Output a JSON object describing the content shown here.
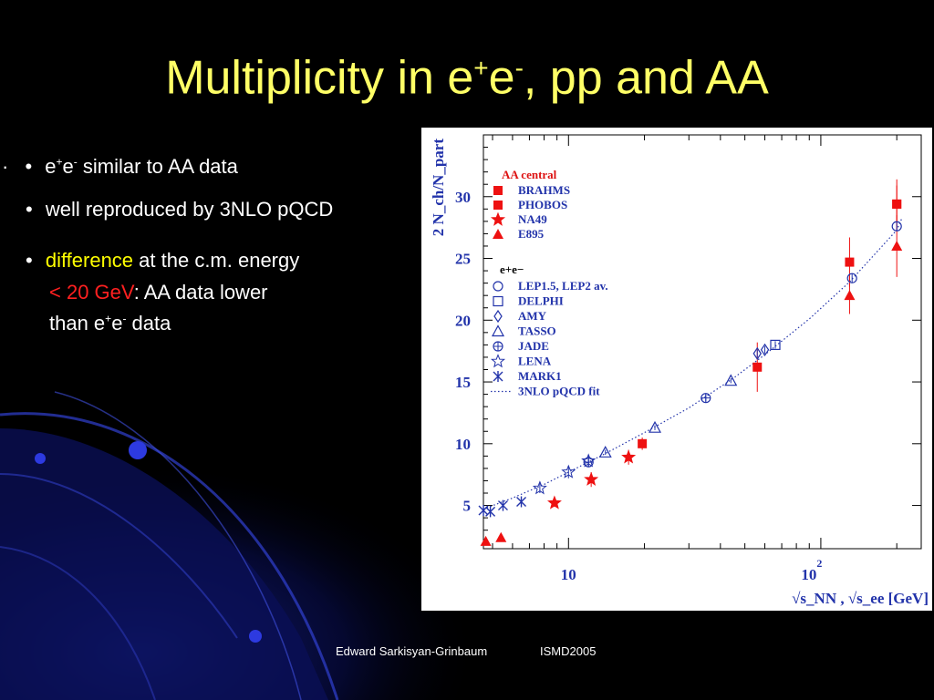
{
  "slide": {
    "title_base": "Multiplicity in e",
    "title_sup1": "+",
    "title_mid": "e",
    "title_sup2": "-",
    "title_end": ", pp and AA"
  },
  "bullets": [
    {
      "marker": "•",
      "prefix_marker": "·",
      "a": "e",
      "a_sup": "+",
      "b": "e",
      "b_sup": "-",
      "text": " similar to AA data"
    },
    {
      "marker": "•",
      "text": "well reproduced by 3NLO pQCD"
    },
    {
      "marker": "•",
      "highlight": "difference",
      "text": " at the c.m. energy",
      "line2_highlight": "< 20 GeV",
      "line2_text": ": AA data lower",
      "line3_a": "than e",
      "line3_a_sup": "+",
      "line3_b": "e",
      "line3_b_sup": "-",
      "line3_text": " data"
    }
  ],
  "footer": {
    "author": "Edward Sarkisyan-Grinbaum",
    "event": "ISMD2005"
  },
  "colors": {
    "title": "#ffff66",
    "highlight_yellow": "#ffff00",
    "highlight_red": "#ff2020",
    "aa_marker": "#ee1111",
    "ee_marker": "#2233aa",
    "background": "#000000"
  },
  "chart_data": {
    "type": "scatter",
    "xscale": "log",
    "xlim": [
      4.6,
      250
    ],
    "ylim": [
      1.5,
      35
    ],
    "yticks": [
      5,
      10,
      15,
      20,
      25,
      30
    ],
    "xtick_labels": [
      "10",
      "10^2"
    ],
    "ylabel": "2 N_ch/N_part",
    "xlabel": "√s_NN , √s_ee   [GeV]",
    "legend_location": "top-left",
    "legend_header_aa": "AA central",
    "legend_header_ee": "e+e−",
    "series": [
      {
        "name": "BRAHMS",
        "group": "AA",
        "marker": "square",
        "color": "#ee1111",
        "x": [
          200
        ],
        "y": [
          29.4
        ],
        "err": [
          2.0
        ]
      },
      {
        "name": "PHOBOS",
        "group": "AA",
        "marker": "square",
        "color": "#ee1111",
        "x": [
          19.6,
          56,
          130,
          200
        ],
        "y": [
          10.0,
          16.2,
          24.7,
          29.4
        ],
        "err": [
          0.5,
          2.0,
          2.0,
          1.5
        ]
      },
      {
        "name": "NA49",
        "group": "AA",
        "marker": "star",
        "color": "#ee1111",
        "x": [
          8.8,
          12.3,
          17.3
        ],
        "y": [
          5.2,
          7.1,
          8.9
        ],
        "err": [
          0.3,
          0.6,
          0.6
        ]
      },
      {
        "name": "E895",
        "group": "AA",
        "marker": "triangle",
        "color": "#ee1111",
        "x": [
          4.7,
          5.4,
          130,
          200
        ],
        "y": [
          2.1,
          2.4,
          22.0,
          26.0
        ],
        "err": [
          0.15,
          0.15,
          1.5,
          2.5
        ]
      },
      {
        "name": "LEP1.5, LEP2 av.",
        "group": "ee",
        "marker": "circle",
        "color": "#2233aa",
        "x": [
          133,
          200
        ],
        "y": [
          23.4,
          27.6
        ],
        "err": [
          0.4,
          0.4
        ]
      },
      {
        "name": "DELPHI",
        "group": "ee",
        "marker": "open-square",
        "color": "#2233aa",
        "x": [
          66
        ],
        "y": [
          18.0
        ],
        "err": [
          0.3
        ]
      },
      {
        "name": "AMY",
        "group": "ee",
        "marker": "diamond",
        "color": "#2233aa",
        "x": [
          56,
          60
        ],
        "y": [
          17.3,
          17.6
        ],
        "err": [
          0.3,
          0.3
        ]
      },
      {
        "name": "TASSO",
        "group": "ee",
        "marker": "open-triangle",
        "color": "#2233aa",
        "x": [
          14,
          22,
          44
        ],
        "y": [
          9.3,
          11.3,
          15.1
        ],
        "err": [
          0.2,
          0.2,
          0.2
        ]
      },
      {
        "name": "JADE",
        "group": "ee",
        "marker": "circle-plus",
        "color": "#2233aa",
        "x": [
          12,
          35
        ],
        "y": [
          8.5,
          13.7
        ],
        "err": [
          0.4,
          0.3
        ]
      },
      {
        "name": "LENA",
        "group": "ee",
        "marker": "open-star",
        "color": "#2233aa",
        "x": [
          7.7,
          10,
          12
        ],
        "y": [
          6.4,
          7.7,
          8.6
        ],
        "err": [
          0.4,
          0.5,
          0.4
        ]
      },
      {
        "name": "MARK1",
        "group": "ee",
        "marker": "asterisk",
        "color": "#2233aa",
        "x": [
          4.6,
          4.9,
          5.5,
          6.5
        ],
        "y": [
          4.6,
          4.5,
          5.0,
          5.3
        ],
        "err": [
          0,
          0,
          0,
          0
        ]
      }
    ],
    "fit": {
      "name": "3NLO pQCD fit",
      "style": "dotted",
      "color": "#2233aa",
      "x": [
        4.6,
        6,
        8,
        10,
        14,
        20,
        30,
        45,
        60,
        90,
        130,
        200,
        210
      ],
      "y": [
        4.7,
        5.6,
        6.7,
        7.7,
        9.2,
        10.9,
        12.9,
        15.3,
        17.2,
        20.1,
        23.1,
        27.3,
        28.3
      ]
    }
  }
}
